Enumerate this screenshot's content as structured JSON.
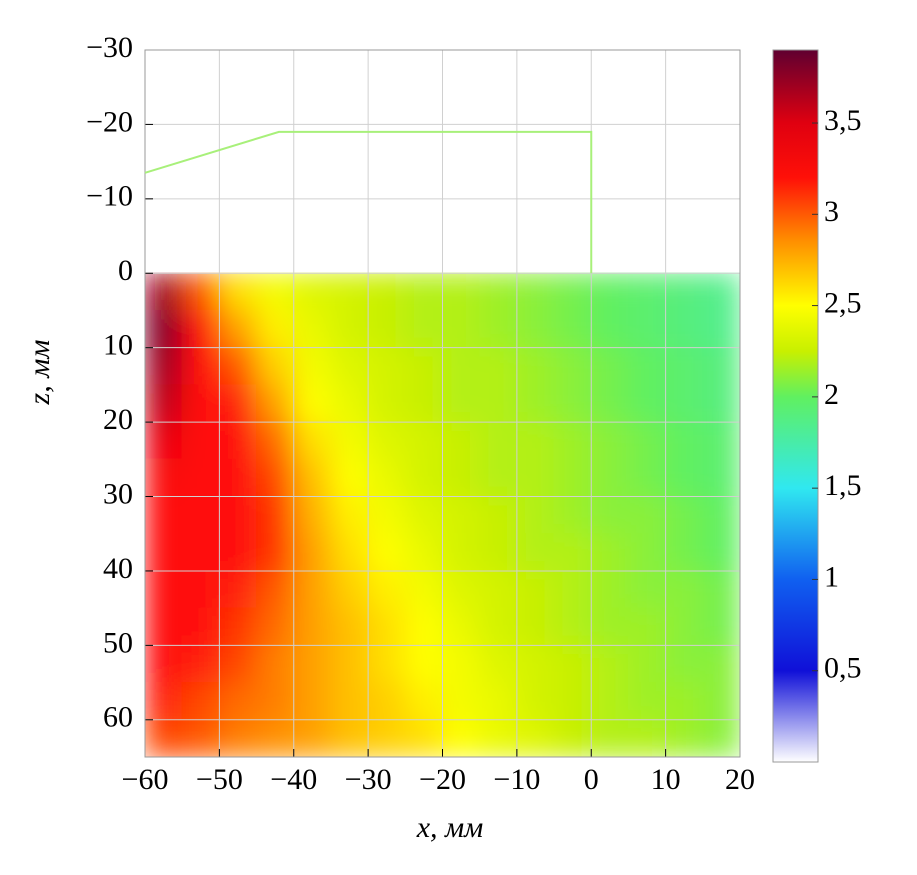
{
  "chart_data": {
    "type": "heatmap",
    "xlabel": "x, мм",
    "ylabel": "z, мм",
    "xlim": [
      -60,
      20
    ],
    "ylim": [
      -30,
      65
    ],
    "y_inverted": true,
    "xticks": [
      {
        "value": -60,
        "label": "−60"
      },
      {
        "value": -50,
        "label": "−50"
      },
      {
        "value": -40,
        "label": "−40"
      },
      {
        "value": -30,
        "label": "−30"
      },
      {
        "value": -20,
        "label": "−20"
      },
      {
        "value": -10,
        "label": "−10"
      },
      0,
      10,
      20
    ],
    "yticks": [
      {
        "value": -30,
        "label": "−30"
      },
      {
        "value": -20,
        "label": "−20"
      },
      {
        "value": -10,
        "label": "−10"
      },
      0,
      10,
      20,
      30,
      40,
      50,
      60
    ],
    "grid": true,
    "x": [
      -57.5,
      -52.5,
      -47.5,
      -42.5,
      -37.5,
      -32.5,
      -27.5,
      -22.5,
      -17.5,
      -12.5,
      -7.5,
      -2.5,
      2.5,
      7.5,
      12.5,
      17.5
    ],
    "y": [
      2.5,
      7.5,
      12.5,
      17.5,
      22.5,
      27.5,
      32.5,
      37.5,
      42.5,
      47.5,
      52.5,
      57.5,
      62.5
    ],
    "values": [
      [
        3.7,
        3.0,
        2.6,
        2.45,
        2.35,
        2.3,
        2.25,
        2.2,
        2.2,
        2.15,
        2.1,
        2.05,
        2.0,
        1.95,
        1.9,
        1.85
      ],
      [
        3.8,
        3.2,
        2.8,
        2.55,
        2.4,
        2.3,
        2.25,
        2.2,
        2.2,
        2.15,
        2.1,
        2.05,
        2.0,
        1.95,
        1.9,
        1.85
      ],
      [
        3.7,
        3.2,
        3.0,
        2.65,
        2.45,
        2.35,
        2.3,
        2.25,
        2.2,
        2.2,
        2.15,
        2.1,
        2.05,
        2.0,
        1.95,
        1.9
      ],
      [
        3.6,
        3.2,
        3.15,
        2.8,
        2.5,
        2.4,
        2.3,
        2.25,
        2.2,
        2.2,
        2.15,
        2.1,
        2.05,
        2.0,
        1.95,
        1.9
      ],
      [
        3.4,
        3.2,
        3.2,
        2.95,
        2.6,
        2.45,
        2.35,
        2.3,
        2.25,
        2.2,
        2.2,
        2.15,
        2.1,
        2.05,
        2.0,
        1.95
      ],
      [
        3.25,
        3.2,
        3.2,
        3.05,
        2.7,
        2.5,
        2.4,
        2.3,
        2.25,
        2.2,
        2.2,
        2.15,
        2.1,
        2.05,
        2.0,
        1.95
      ],
      [
        3.2,
        3.2,
        3.2,
        3.1,
        2.75,
        2.55,
        2.45,
        2.35,
        2.3,
        2.25,
        2.2,
        2.15,
        2.1,
        2.1,
        2.05,
        2.0
      ],
      [
        3.2,
        3.2,
        3.2,
        3.1,
        2.8,
        2.6,
        2.5,
        2.4,
        2.3,
        2.25,
        2.2,
        2.2,
        2.15,
        2.1,
        2.05,
        2.0
      ],
      [
        3.2,
        3.2,
        3.15,
        3.0,
        2.8,
        2.65,
        2.55,
        2.45,
        2.35,
        2.3,
        2.25,
        2.2,
        2.15,
        2.1,
        2.1,
        2.05
      ],
      [
        3.2,
        3.2,
        3.1,
        2.95,
        2.8,
        2.7,
        2.6,
        2.5,
        2.4,
        2.3,
        2.25,
        2.2,
        2.15,
        2.15,
        2.1,
        2.05
      ],
      [
        3.2,
        3.15,
        3.05,
        2.9,
        2.8,
        2.7,
        2.6,
        2.5,
        2.45,
        2.35,
        2.3,
        2.25,
        2.2,
        2.15,
        2.1,
        2.1
      ],
      [
        3.15,
        3.05,
        2.95,
        2.9,
        2.8,
        2.7,
        2.65,
        2.55,
        2.45,
        2.4,
        2.3,
        2.25,
        2.2,
        2.15,
        2.15,
        2.1
      ],
      [
        3.05,
        3.0,
        2.9,
        2.85,
        2.8,
        2.7,
        2.65,
        2.6,
        2.5,
        2.4,
        2.35,
        2.25,
        2.2,
        2.2,
        2.15,
        2.1
      ]
    ],
    "outline": {
      "color": "#a8f07a",
      "x": [
        -60,
        -42,
        0,
        0
      ],
      "y": [
        -13.5,
        -19,
        -19,
        0
      ]
    },
    "clim": [
      0,
      3.9
    ],
    "cticks": [
      {
        "value": 0.5,
        "label": "0,5"
      },
      1,
      {
        "value": 1.5,
        "label": "1,5"
      },
      2,
      {
        "value": 2.5,
        "label": "2,5"
      },
      3,
      {
        "value": 3.5,
        "label": "3,5"
      }
    ],
    "colorscale": [
      [
        0,
        "#ffffff"
      ],
      [
        0.5,
        "#1010d8"
      ],
      [
        1,
        "#1060f0"
      ],
      [
        1.5,
        "#30e8f0"
      ],
      [
        2,
        "#60f060"
      ],
      [
        2.25,
        "#c8f000"
      ],
      [
        2.5,
        "#ffff00"
      ],
      [
        2.85,
        "#ff9000"
      ],
      [
        3.2,
        "#ff1008"
      ],
      [
        3.5,
        "#e00010"
      ],
      [
        3.9,
        "#600030"
      ]
    ]
  }
}
